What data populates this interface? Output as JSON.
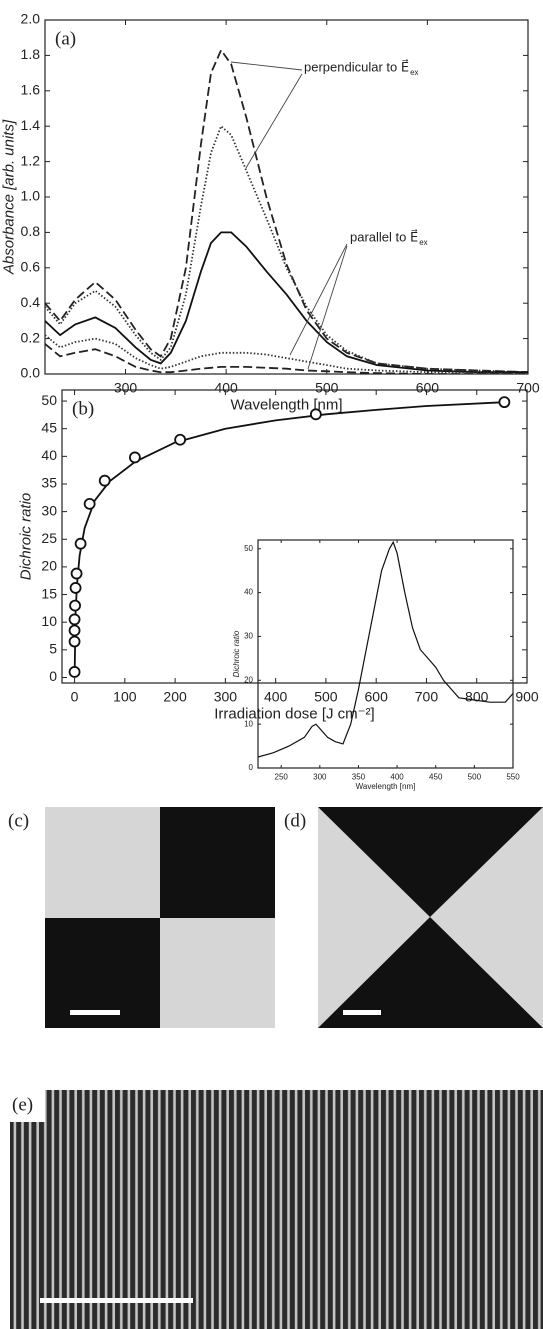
{
  "chart_data": [
    {
      "type": "line",
      "panel_label": "(a)",
      "xlabel": "Wavelength [nm]",
      "ylabel": "Absorbance [arb. units]",
      "xlim": [
        220,
        700
      ],
      "xticks": [
        300,
        400,
        500,
        600,
        700
      ],
      "ylim": [
        0,
        2.0
      ],
      "yticks": [
        {
          "value": 0,
          "label": "0.0"
        },
        0.2,
        0.4,
        0.6,
        0.8,
        {
          "value": 1,
          "label": "1.0"
        },
        1.2,
        1.4,
        1.6,
        1.8,
        {
          "value": 2,
          "label": "2.0"
        }
      ],
      "grid": false,
      "annotations": [
        {
          "text": "perpendicular to E⃗",
          "subscript": "ex"
        },
        {
          "text": "parallel to E⃗",
          "subscript": "ex"
        }
      ],
      "x": [
        220,
        235,
        250,
        270,
        290,
        310,
        325,
        335,
        345,
        360,
        375,
        385,
        395,
        405,
        420,
        440,
        460,
        480,
        500,
        520,
        550,
        600,
        650,
        700
      ],
      "series": [
        {
          "color": "#222",
          "style": "dashed",
          "values": [
            0.4,
            0.3,
            0.42,
            0.52,
            0.42,
            0.25,
            0.14,
            0.1,
            0.2,
            0.6,
            1.3,
            1.7,
            1.83,
            1.75,
            1.45,
            1.0,
            0.62,
            0.36,
            0.2,
            0.12,
            0.06,
            0.03,
            0.02,
            0.01
          ]
        },
        {
          "color": "#333",
          "style": "dotted",
          "values": [
            0.38,
            0.28,
            0.4,
            0.47,
            0.38,
            0.22,
            0.12,
            0.08,
            0.15,
            0.45,
            0.95,
            1.25,
            1.4,
            1.35,
            1.15,
            0.88,
            0.6,
            0.38,
            0.22,
            0.13,
            0.06,
            0.03,
            0.02,
            0.01
          ]
        },
        {
          "color": "#111",
          "style": "solid",
          "values": [
            0.3,
            0.22,
            0.28,
            0.32,
            0.26,
            0.15,
            0.08,
            0.06,
            0.12,
            0.3,
            0.58,
            0.74,
            0.8,
            0.8,
            0.72,
            0.58,
            0.45,
            0.3,
            0.18,
            0.1,
            0.05,
            0.02,
            0.01,
            0.01
          ]
        },
        {
          "color": "#333",
          "style": "dotted",
          "values": [
            0.22,
            0.15,
            0.18,
            0.2,
            0.17,
            0.09,
            0.05,
            0.03,
            0.04,
            0.07,
            0.1,
            0.11,
            0.12,
            0.12,
            0.12,
            0.11,
            0.09,
            0.07,
            0.05,
            0.03,
            0.02,
            0.01,
            0.01,
            0.0
          ]
        },
        {
          "color": "#222",
          "style": "dashed",
          "values": [
            0.17,
            0.1,
            0.12,
            0.14,
            0.1,
            0.04,
            0.02,
            0.01,
            0.01,
            0.02,
            0.03,
            0.035,
            0.04,
            0.04,
            0.04,
            0.035,
            0.03,
            0.02,
            0.015,
            0.01,
            0.005,
            0,
            0,
            0
          ]
        }
      ]
    },
    {
      "type": "scatter",
      "panel_label": "(b)",
      "xlabel": "Irradiation dose [J cm⁻²]",
      "ylabel": "Dichroic ratio",
      "xlim": [
        -25,
        900
      ],
      "xticks": [
        0,
        100,
        200,
        300,
        400,
        500,
        600,
        700,
        800,
        900
      ],
      "ylim": [
        -1,
        52
      ],
      "yticks": [
        0,
        5,
        10,
        15,
        20,
        25,
        30,
        35,
        40,
        45,
        50
      ],
      "grid": false,
      "series": [
        {
          "color": "#111",
          "marker": "circle",
          "x": [
            0,
            0,
            0,
            0,
            1,
            2,
            4,
            12,
            30,
            60,
            120,
            210,
            480,
            855
          ],
          "values": [
            1,
            6.5,
            8.5,
            10.5,
            13,
            16.2,
            18.8,
            24.2,
            31.4,
            35.6,
            39.8,
            43,
            47.6,
            49.8
          ]
        },
        {
          "color": "#111",
          "style": "solid",
          "x": [
            0,
            2,
            5,
            10,
            20,
            40,
            70,
            120,
            200,
            300,
            400,
            500,
            600,
            700,
            855
          ],
          "values": [
            0,
            12,
            17,
            22,
            27,
            32,
            35.5,
            39,
            42.5,
            45,
            46.5,
            47.6,
            48.4,
            49.1,
            49.8
          ]
        }
      ]
    },
    {
      "type": "line",
      "xlabel": "Wavelength [nm]",
      "ylabel": "Dichroic ratio",
      "xlim": [
        220,
        550
      ],
      "xticks": [
        250,
        300,
        350,
        400,
        450,
        500,
        550
      ],
      "ylim": [
        0,
        52
      ],
      "yticks": [
        0,
        10,
        20,
        30,
        40,
        50
      ],
      "grid": false,
      "x": [
        220,
        240,
        260,
        280,
        290,
        295,
        300,
        310,
        320,
        330,
        340,
        350,
        360,
        370,
        380,
        390,
        395,
        400,
        410,
        420,
        430,
        440,
        450,
        460,
        470,
        480,
        500,
        520,
        540,
        550
      ],
      "series": [
        {
          "color": "#111",
          "style": "solid",
          "values": [
            2.5,
            3.5,
            5,
            7,
            9.5,
            10,
            9,
            7,
            6,
            5.5,
            10,
            18,
            27,
            36,
            45,
            50,
            51.5,
            49,
            40,
            32,
            27,
            25,
            23,
            20,
            18,
            16,
            15.5,
            15,
            15,
            17
          ]
        }
      ]
    }
  ],
  "images": [
    {
      "label": "(c)"
    },
    {
      "label": "(d)"
    },
    {
      "label": "(e)"
    }
  ]
}
